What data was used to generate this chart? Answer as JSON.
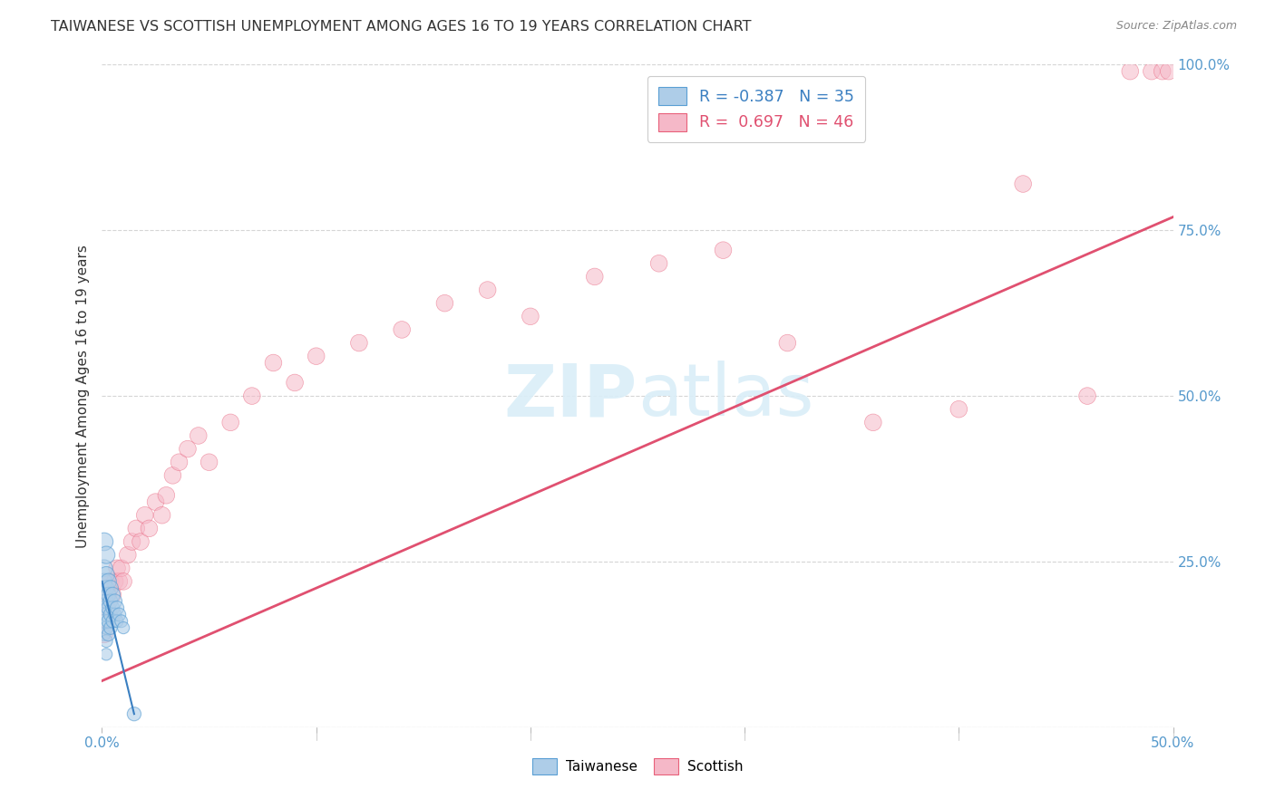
{
  "title": "TAIWANESE VS SCOTTISH UNEMPLOYMENT AMONG AGES 16 TO 19 YEARS CORRELATION CHART",
  "source": "Source: ZipAtlas.com",
  "ylabel": "Unemployment Among Ages 16 to 19 years",
  "xlim": [
    0.0,
    0.5
  ],
  "ylim": [
    0.0,
    1.0
  ],
  "taiwanese_R": -0.387,
  "taiwanese_N": 35,
  "scottish_R": 0.697,
  "scottish_N": 46,
  "taiwanese_color": "#aecde8",
  "scottish_color": "#f5b8c8",
  "taiwanese_edge_color": "#5a9fd4",
  "scottish_edge_color": "#e8607a",
  "taiwanese_line_color": "#3a7fc1",
  "scottish_line_color": "#e05070",
  "watermark_color": "#daeef8",
  "background_color": "#ffffff",
  "grid_color": "#d5d5d5",
  "axis_label_color": "#5599cc",
  "title_color": "#333333",
  "source_color": "#888888",
  "taiwanese_x": [
    0.001,
    0.001,
    0.001,
    0.001,
    0.001,
    0.001,
    0.001,
    0.002,
    0.002,
    0.002,
    0.002,
    0.002,
    0.002,
    0.002,
    0.002,
    0.003,
    0.003,
    0.003,
    0.003,
    0.003,
    0.004,
    0.004,
    0.004,
    0.004,
    0.005,
    0.005,
    0.005,
    0.006,
    0.006,
    0.007,
    0.007,
    0.008,
    0.009,
    0.01,
    0.015
  ],
  "taiwanese_y": [
    0.28,
    0.24,
    0.22,
    0.2,
    0.18,
    0.16,
    0.14,
    0.26,
    0.23,
    0.21,
    0.19,
    0.17,
    0.15,
    0.13,
    0.11,
    0.22,
    0.2,
    0.18,
    0.16,
    0.14,
    0.21,
    0.19,
    0.17,
    0.15,
    0.2,
    0.18,
    0.16,
    0.19,
    0.17,
    0.18,
    0.16,
    0.17,
    0.16,
    0.15,
    0.02
  ],
  "taiwanese_sizes": [
    200,
    180,
    160,
    140,
    120,
    110,
    100,
    190,
    170,
    150,
    130,
    120,
    110,
    100,
    90,
    160,
    140,
    130,
    120,
    110,
    150,
    130,
    120,
    110,
    140,
    120,
    110,
    130,
    110,
    120,
    100,
    110,
    100,
    90,
    120
  ],
  "scottish_x": [
    0.001,
    0.002,
    0.003,
    0.004,
    0.005,
    0.006,
    0.007,
    0.008,
    0.009,
    0.01,
    0.012,
    0.014,
    0.016,
    0.018,
    0.02,
    0.022,
    0.025,
    0.028,
    0.03,
    0.033,
    0.036,
    0.04,
    0.045,
    0.05,
    0.06,
    0.07,
    0.08,
    0.09,
    0.1,
    0.12,
    0.14,
    0.16,
    0.18,
    0.2,
    0.23,
    0.26,
    0.29,
    0.32,
    0.36,
    0.4,
    0.43,
    0.46,
    0.48,
    0.49,
    0.495,
    0.498
  ],
  "scottish_y": [
    0.14,
    0.18,
    0.2,
    0.22,
    0.2,
    0.22,
    0.24,
    0.22,
    0.24,
    0.22,
    0.26,
    0.28,
    0.3,
    0.28,
    0.32,
    0.3,
    0.34,
    0.32,
    0.35,
    0.38,
    0.4,
    0.42,
    0.44,
    0.4,
    0.46,
    0.5,
    0.55,
    0.52,
    0.56,
    0.58,
    0.6,
    0.64,
    0.66,
    0.62,
    0.68,
    0.7,
    0.72,
    0.58,
    0.46,
    0.48,
    0.82,
    0.5,
    0.99,
    0.99,
    0.99,
    0.99
  ],
  "scottish_sizes": [
    180,
    180,
    180,
    180,
    180,
    180,
    180,
    180,
    180,
    180,
    180,
    180,
    180,
    180,
    180,
    180,
    180,
    180,
    180,
    180,
    180,
    180,
    180,
    180,
    180,
    180,
    180,
    180,
    180,
    180,
    180,
    180,
    180,
    180,
    180,
    180,
    180,
    180,
    180,
    180,
    180,
    180,
    180,
    180,
    180,
    180
  ],
  "scottish_line_x": [
    0.0,
    0.5
  ],
  "scottish_line_y": [
    0.07,
    0.77
  ],
  "taiwanese_line_x": [
    0.0,
    0.015
  ],
  "taiwanese_line_y": [
    0.22,
    0.02
  ]
}
